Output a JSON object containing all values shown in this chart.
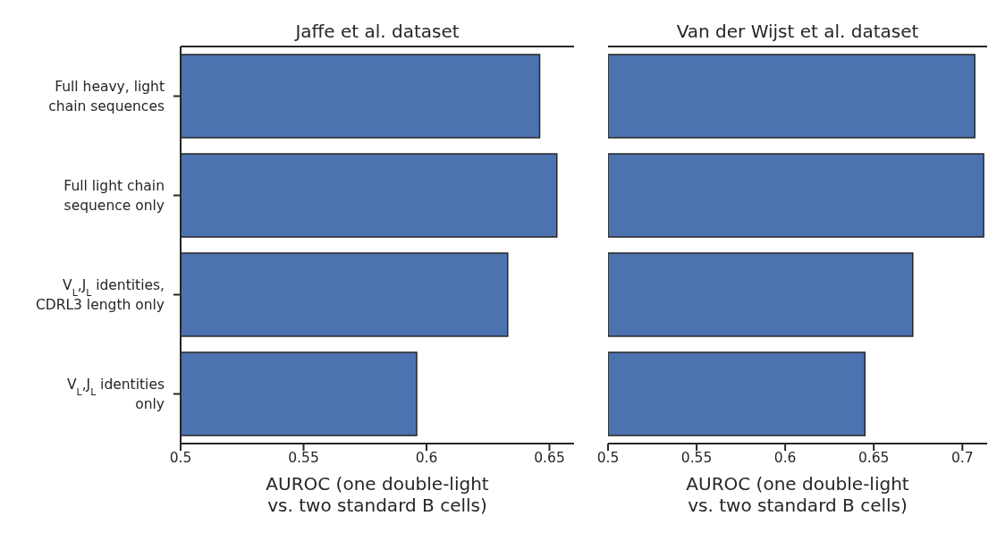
{
  "chart_data": [
    {
      "type": "bar",
      "orientation": "horizontal",
      "title": "Jaffe et al. dataset",
      "xlabel": "AUROC (one double-light\nvs. two standard B cells)",
      "categories": [
        "Full heavy, light\nchain sequences",
        "Full light chain\nsequence only",
        "V$_{L}$,J$_{L}$ identities,\nCDRL3 length only",
        "V$_{L}$,J$_{L}$ identities\nonly"
      ],
      "values": [
        0.646,
        0.653,
        0.633,
        0.596
      ],
      "color": "#4c72b0",
      "xlim": [
        0.5,
        0.66
      ],
      "xticks": [
        0.5,
        0.55,
        0.6,
        0.65
      ],
      "grid": false
    },
    {
      "type": "bar",
      "orientation": "horizontal",
      "title": "Van der Wijst et al. dataset",
      "xlabel": "AUROC (one double-light\nvs. two standard B cells)",
      "values": [
        0.707,
        0.712,
        0.672,
        0.645
      ],
      "color": "#4c72b0",
      "xlim": [
        0.5,
        0.714
      ],
      "xticks": [
        0.5,
        0.55,
        0.6,
        0.65,
        0.7
      ],
      "tick_labels": "x",
      "grid": false
    }
  ]
}
